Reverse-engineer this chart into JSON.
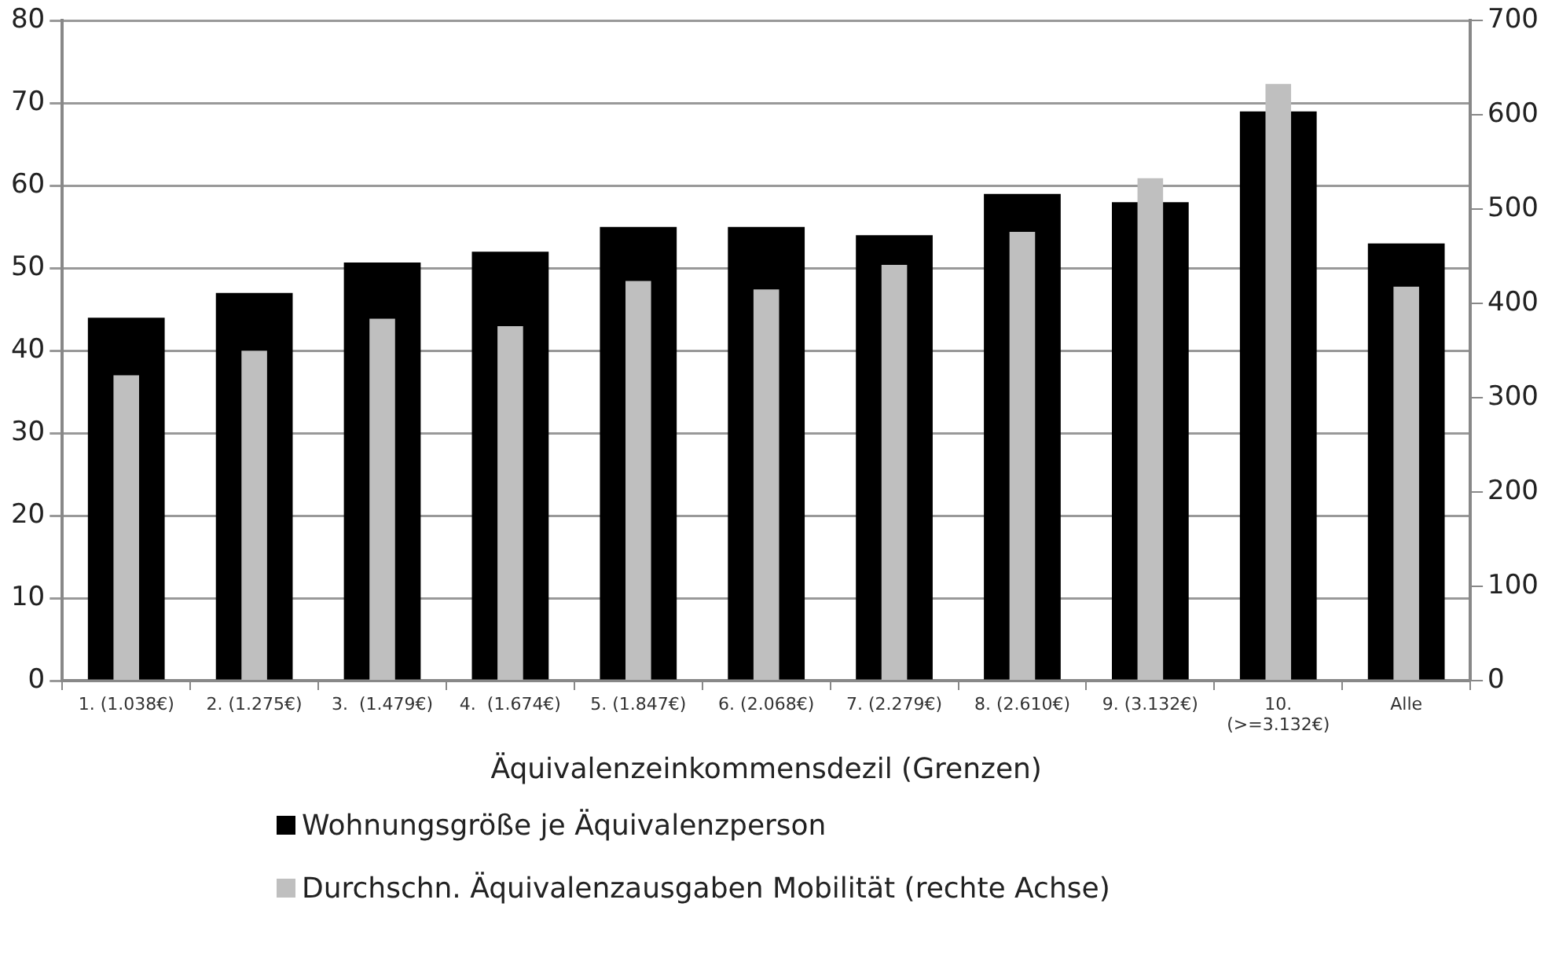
{
  "chart_data": {
    "type": "bar",
    "xlabel": "Äquivalenzeinkommensdezil (Grenzen)",
    "categories": [
      "1. (1.038€)",
      "2. (1.275€)",
      "3.  (1.479€)",
      "4.  (1.674€)",
      "5. (1.847€)",
      "6. (2.068€)",
      "7. (2.279€)",
      "8. (2.610€)",
      "9. (3.132€)",
      "10.\n(>=3.132€)",
      "Alle"
    ],
    "series": [
      {
        "name": "Wohnungsgröße je Äquivalenzperson",
        "color": "#000000",
        "values": [
          44,
          47,
          50.7,
          52,
          55,
          55,
          54,
          59,
          58,
          69,
          53
        ]
      },
      {
        "name": "Durchschn. Äquivalenzausgaben Mobilität (rechte Achse)",
        "color": "#bfbfbf",
        "axis": "y2",
        "values": [
          324,
          350,
          384,
          376,
          424,
          415,
          441,
          476,
          533,
          633,
          418
        ]
      }
    ],
    "ylim": [
      0,
      80
    ],
    "yticks": [
      0,
      10,
      20,
      30,
      40,
      50,
      60,
      70,
      80
    ],
    "y2lim": [
      0,
      700
    ],
    "y2ticks": [
      0,
      100,
      200,
      300,
      400,
      500,
      600,
      700
    ],
    "grid": "y",
    "legend": "bottom"
  }
}
